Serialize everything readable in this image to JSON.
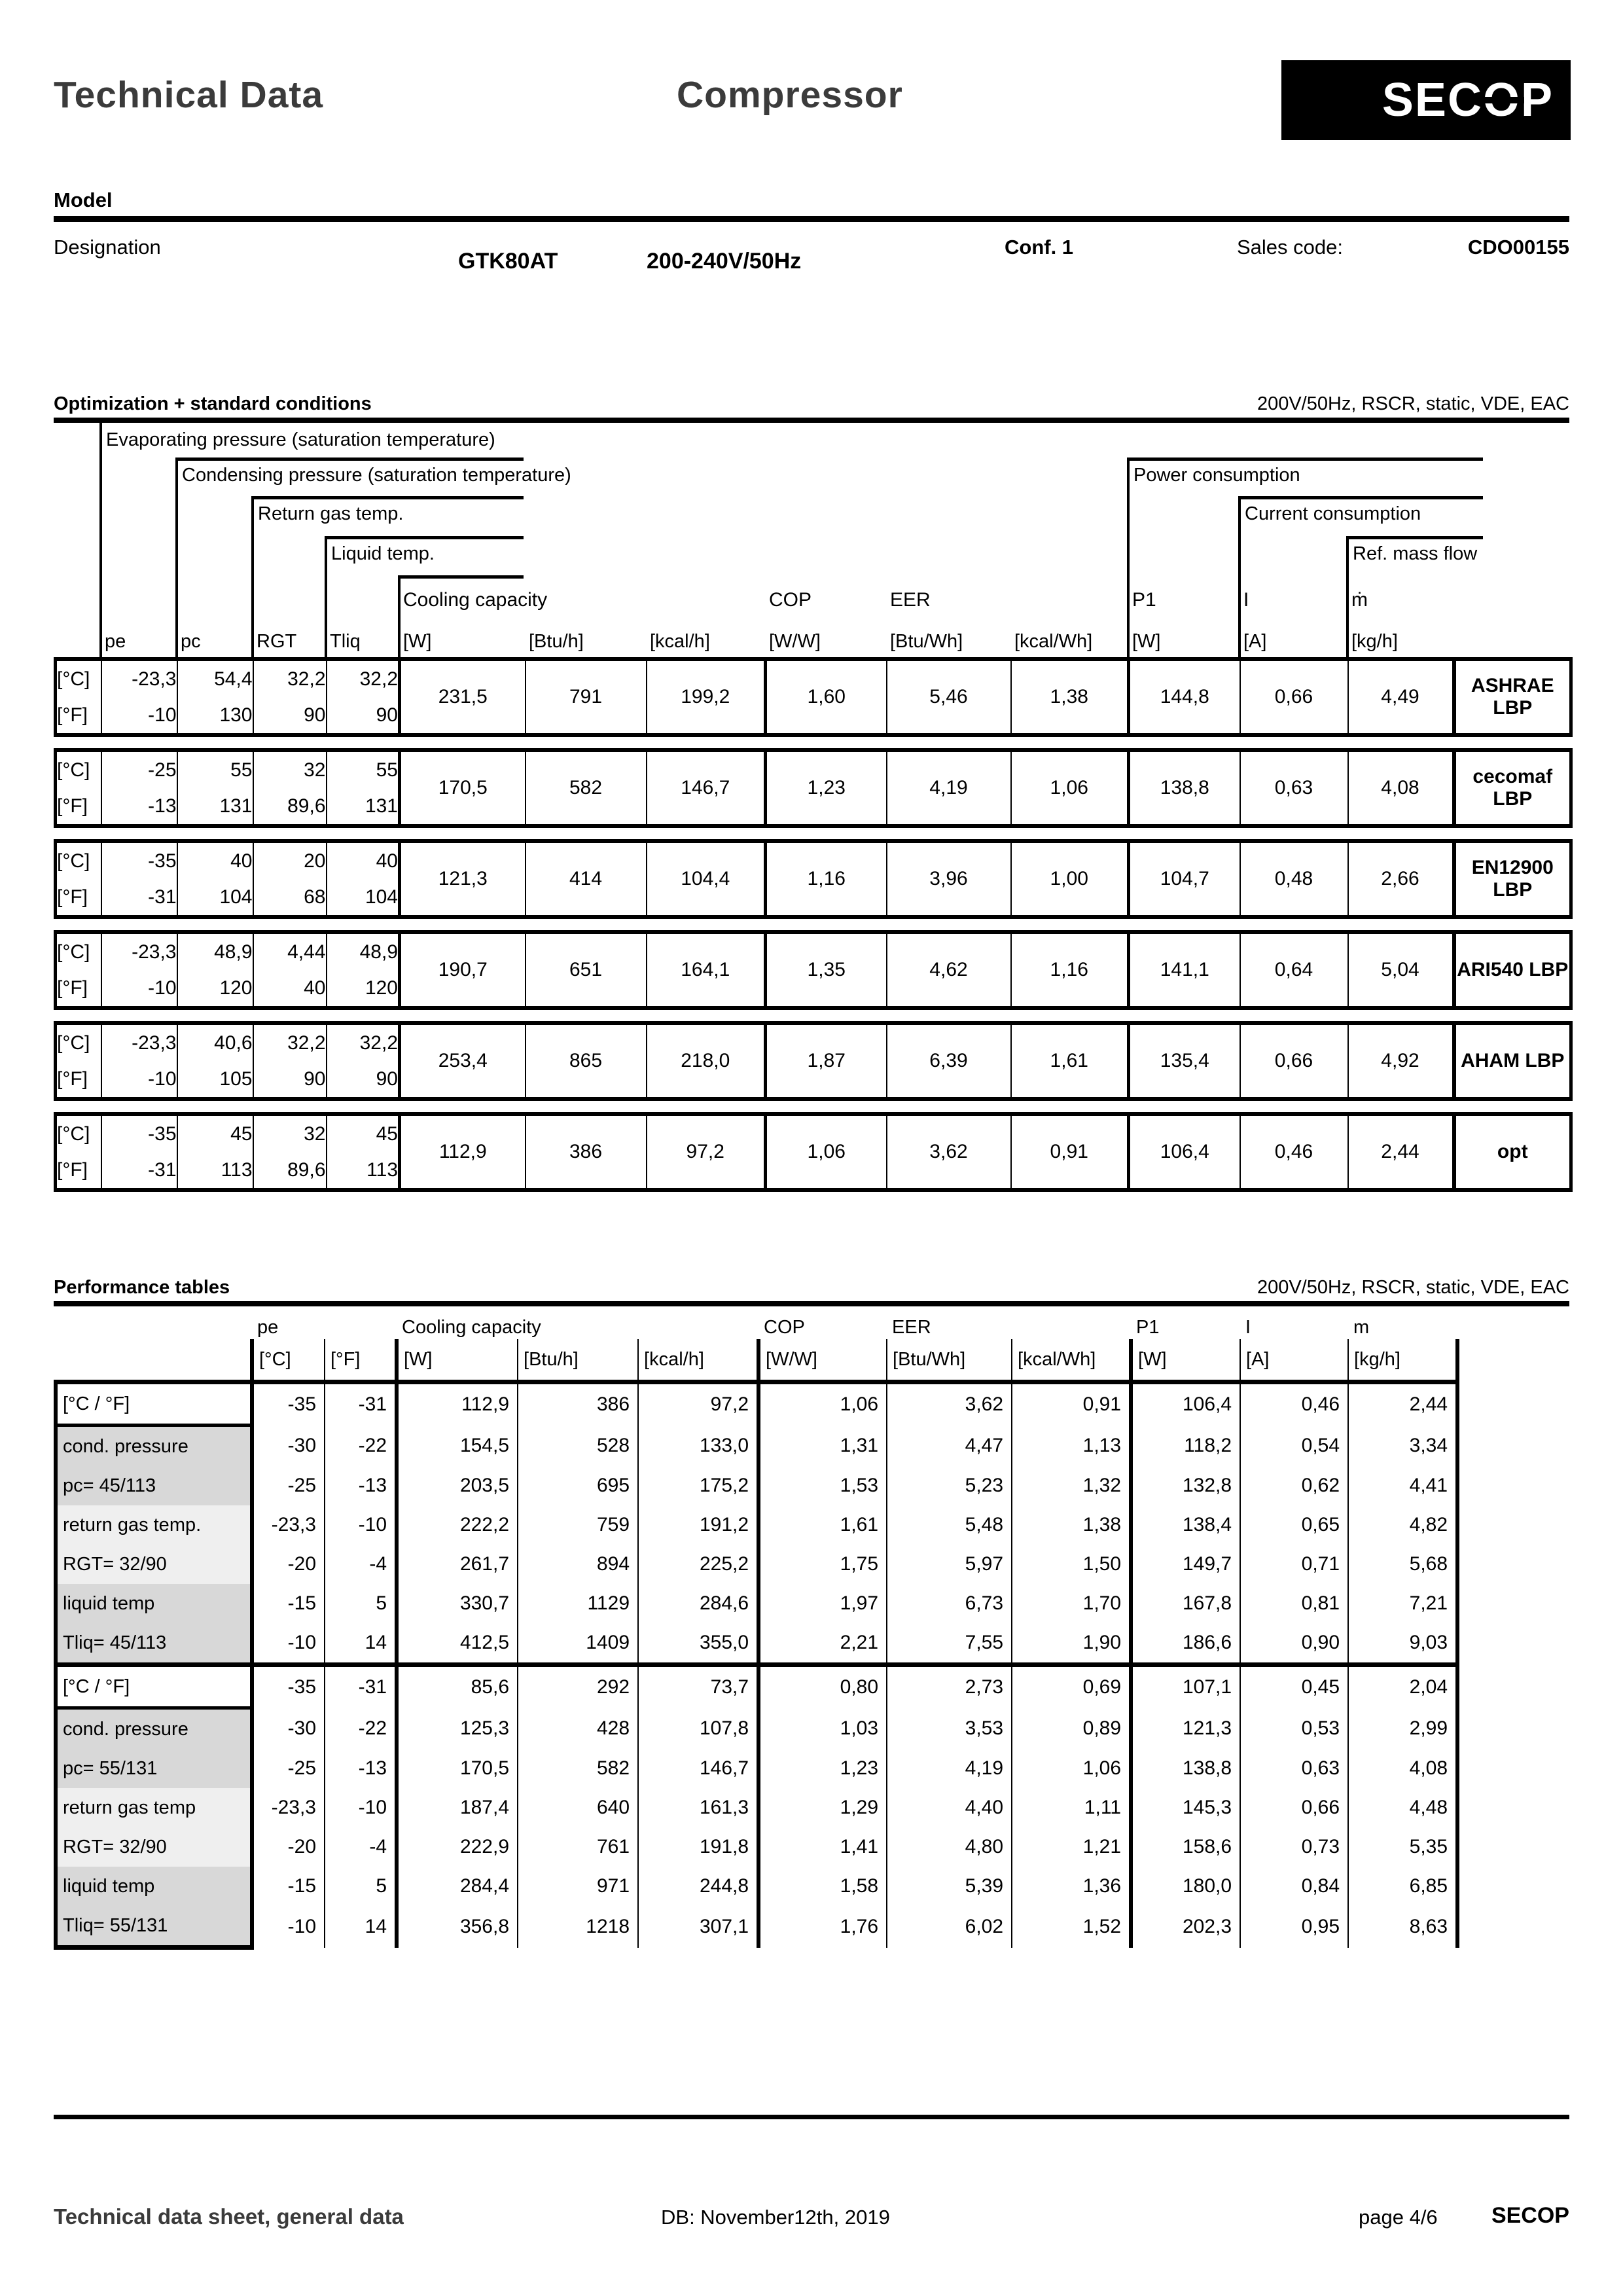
{
  "header": {
    "title": "Technical Data",
    "subtitle": "Compressor",
    "logo": "SECOP"
  },
  "model": {
    "section_label": "Model",
    "designation_label": "Designation",
    "name": "GTK80AT",
    "voltage": "200-240V/50Hz",
    "conf": "Conf. 1",
    "sales_code_label": "Sales code:",
    "sales_code": "CDO00155"
  },
  "optimization": {
    "title": "Optimization + standard conditions",
    "conditions": "200V/50Hz, RSCR, static, VDE, EAC",
    "tree": {
      "evaporating": "Evaporating pressure (saturation temperature)",
      "condensing": "Condensing pressure (saturation temperature)",
      "return_gas": "Return gas temp.",
      "liquid": "Liquid temp.",
      "cooling": "Cooling capacity",
      "cop": "COP",
      "eer": "EER",
      "power": "Power consumption",
      "current": "Current consumption",
      "ref_mass_flow": "Ref. mass flow",
      "p1": "P1",
      "i": "I",
      "mdot": "ṁ"
    },
    "columns": [
      "pe",
      "pc",
      "RGT",
      "Tliq",
      "[W]",
      "[Btu/h]",
      "[kcal/h]",
      "[W/W]",
      "[Btu/Wh]",
      "[kcal/Wh]",
      "[W]",
      "[A]",
      "[kg/h]"
    ],
    "unit_c": "[°C]",
    "unit_f": "[°F]",
    "rows": [
      {
        "c": [
          "-23,3",
          "54,4",
          "32,2",
          "32,2"
        ],
        "f": [
          "-10",
          "130",
          "90",
          "90"
        ],
        "values": [
          "231,5",
          "791",
          "199,2",
          "1,60",
          "5,46",
          "1,38",
          "144,8",
          "0,66",
          "4,49"
        ],
        "standard": "ASHRAE\nLBP"
      },
      {
        "c": [
          "-25",
          "55",
          "32",
          "55"
        ],
        "f": [
          "-13",
          "131",
          "89,6",
          "131"
        ],
        "values": [
          "170,5",
          "582",
          "146,7",
          "1,23",
          "4,19",
          "1,06",
          "138,8",
          "0,63",
          "4,08"
        ],
        "standard": "cecomaf\nLBP"
      },
      {
        "c": [
          "-35",
          "40",
          "20",
          "40"
        ],
        "f": [
          "-31",
          "104",
          "68",
          "104"
        ],
        "values": [
          "121,3",
          "414",
          "104,4",
          "1,16",
          "3,96",
          "1,00",
          "104,7",
          "0,48",
          "2,66"
        ],
        "standard": "EN12900\nLBP"
      },
      {
        "c": [
          "-23,3",
          "48,9",
          "4,44",
          "48,9"
        ],
        "f": [
          "-10",
          "120",
          "40",
          "120"
        ],
        "values": [
          "190,7",
          "651",
          "164,1",
          "1,35",
          "4,62",
          "1,16",
          "141,1",
          "0,64",
          "5,04"
        ],
        "standard": "ARI540 LBP"
      },
      {
        "c": [
          "-23,3",
          "40,6",
          "32,2",
          "32,2"
        ],
        "f": [
          "-10",
          "105",
          "90",
          "90"
        ],
        "values": [
          "253,4",
          "865",
          "218,0",
          "1,87",
          "6,39",
          "1,61",
          "135,4",
          "0,66",
          "4,92"
        ],
        "standard": "AHAM LBP"
      },
      {
        "c": [
          "-35",
          "45",
          "32",
          "45"
        ],
        "f": [
          "-31",
          "113",
          "89,6",
          "113"
        ],
        "values": [
          "112,9",
          "386",
          "97,2",
          "1,06",
          "3,62",
          "0,91",
          "106,4",
          "0,46",
          "2,44"
        ],
        "standard": "opt"
      }
    ]
  },
  "performance": {
    "title": "Performance tables",
    "conditions": "200V/50Hz, RSCR, static, VDE, EAC",
    "groups": [
      "pe",
      "Cooling capacity",
      "COP",
      "EER",
      "P1",
      "I",
      "m"
    ],
    "units": [
      "[°C]",
      "[°F]",
      "[W]",
      "[Btu/h]",
      "[kcal/h]",
      "[W/W]",
      "[Btu/Wh]",
      "[kcal/Wh]",
      "[W]",
      "[A]",
      "[kg/h]"
    ],
    "tables": [
      {
        "row_labels": [
          "[°C / °F]",
          "cond. pressure",
          "pc= 45/113",
          "return gas temp.",
          "RGT= 32/90",
          "liquid temp",
          "Tliq= 45/113"
        ],
        "rows": [
          [
            "-35",
            "-31",
            "112,9",
            "386",
            "97,2",
            "1,06",
            "3,62",
            "0,91",
            "106,4",
            "0,46",
            "2,44"
          ],
          [
            "-30",
            "-22",
            "154,5",
            "528",
            "133,0",
            "1,31",
            "4,47",
            "1,13",
            "118,2",
            "0,54",
            "3,34"
          ],
          [
            "-25",
            "-13",
            "203,5",
            "695",
            "175,2",
            "1,53",
            "5,23",
            "1,32",
            "132,8",
            "0,62",
            "4,41"
          ],
          [
            "-23,3",
            "-10",
            "222,2",
            "759",
            "191,2",
            "1,61",
            "5,48",
            "1,38",
            "138,4",
            "0,65",
            "4,82"
          ],
          [
            "-20",
            "-4",
            "261,7",
            "894",
            "225,2",
            "1,75",
            "5,97",
            "1,50",
            "149,7",
            "0,71",
            "5,68"
          ],
          [
            "-15",
            "5",
            "330,7",
            "1129",
            "284,6",
            "1,97",
            "6,73",
            "1,70",
            "167,8",
            "0,81",
            "7,21"
          ],
          [
            "-10",
            "14",
            "412,5",
            "1409",
            "355,0",
            "2,21",
            "7,55",
            "1,90",
            "186,6",
            "0,90",
            "9,03"
          ]
        ]
      },
      {
        "row_labels": [
          "[°C / °F]",
          "cond. pressure",
          "pc= 55/131",
          "return gas temp",
          "RGT= 32/90",
          "liquid temp",
          "Tliq= 55/131"
        ],
        "rows": [
          [
            "-35",
            "-31",
            "85,6",
            "292",
            "73,7",
            "0,80",
            "2,73",
            "0,69",
            "107,1",
            "0,45",
            "2,04"
          ],
          [
            "-30",
            "-22",
            "125,3",
            "428",
            "107,8",
            "1,03",
            "3,53",
            "0,89",
            "121,3",
            "0,53",
            "2,99"
          ],
          [
            "-25",
            "-13",
            "170,5",
            "582",
            "146,7",
            "1,23",
            "4,19",
            "1,06",
            "138,8",
            "0,63",
            "4,08"
          ],
          [
            "-23,3",
            "-10",
            "187,4",
            "640",
            "161,3",
            "1,29",
            "4,40",
            "1,11",
            "145,3",
            "0,66",
            "4,48"
          ],
          [
            "-20",
            "-4",
            "222,9",
            "761",
            "191,8",
            "1,41",
            "4,80",
            "1,21",
            "158,6",
            "0,73",
            "5,35"
          ],
          [
            "-15",
            "5",
            "284,4",
            "971",
            "244,8",
            "1,58",
            "5,39",
            "1,36",
            "180,0",
            "0,84",
            "6,85"
          ],
          [
            "-10",
            "14",
            "356,8",
            "1218",
            "307,1",
            "1,76",
            "6,02",
            "1,52",
            "202,3",
            "0,95",
            "8,63"
          ]
        ]
      }
    ]
  },
  "footer": {
    "left": "Technical data sheet, general data",
    "db": "DB: November12th, 2019",
    "page": "page 4/6",
    "brand": "SECOP"
  }
}
